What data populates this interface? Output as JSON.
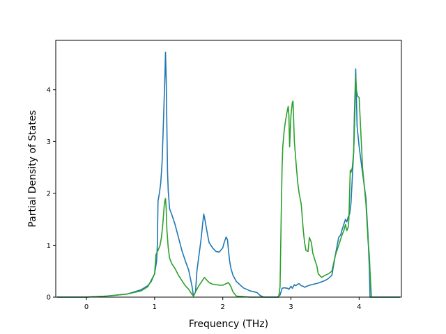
{
  "chart_data": {
    "type": "line",
    "title": "",
    "xlabel": "Frequency (THz)",
    "ylabel": "Partial Density of States",
    "xlim": [
      -0.45,
      4.62
    ],
    "ylim": [
      0,
      4.95
    ],
    "xticks": [
      0,
      1,
      2,
      3,
      4
    ],
    "yticks": [
      0,
      1,
      2,
      3,
      4
    ],
    "grid": false,
    "legend": "none",
    "series": [
      {
        "color": "#1f77b4",
        "x": [
          -0.43,
          0.0,
          0.3,
          0.6,
          0.8,
          0.9,
          0.95,
          1.0,
          1.03,
          1.04,
          1.05,
          1.07,
          1.09,
          1.11,
          1.13,
          1.15,
          1.16,
          1.17,
          1.18,
          1.19,
          1.2,
          1.22,
          1.25,
          1.3,
          1.35,
          1.4,
          1.45,
          1.5,
          1.55,
          1.57,
          1.6,
          1.62,
          1.65,
          1.68,
          1.7,
          1.72,
          1.73,
          1.75,
          1.78,
          1.8,
          1.85,
          1.9,
          1.95,
          2.0,
          2.02,
          2.05,
          2.07,
          2.08,
          2.1,
          2.12,
          2.15,
          2.2,
          2.3,
          2.4,
          2.5,
          2.55,
          2.6,
          2.62,
          2.8,
          2.84,
          2.87,
          2.9,
          2.95,
          2.97,
          3.0,
          3.02,
          3.05,
          3.07,
          3.1,
          3.12,
          3.15,
          3.18,
          3.2,
          3.25,
          3.3,
          3.4,
          3.5,
          3.55,
          3.6,
          3.65,
          3.7,
          3.73,
          3.75,
          3.78,
          3.8,
          3.82,
          3.84,
          3.86,
          3.88,
          3.9,
          3.92,
          3.93,
          3.95,
          3.97,
          4.0,
          4.05,
          4.1,
          4.13,
          4.15,
          4.16,
          4.18,
          4.2,
          4.4,
          4.6
        ],
        "y": [
          0.0,
          0.0,
          0.02,
          0.06,
          0.14,
          0.22,
          0.3,
          0.45,
          0.7,
          1.0,
          1.85,
          2.0,
          2.2,
          2.6,
          3.4,
          4.2,
          4.72,
          4.2,
          3.3,
          2.4,
          2.05,
          1.7,
          1.6,
          1.4,
          1.15,
          0.9,
          0.7,
          0.52,
          0.2,
          0.02,
          0.1,
          0.5,
          0.8,
          1.1,
          1.35,
          1.6,
          1.55,
          1.4,
          1.18,
          1.05,
          0.95,
          0.88,
          0.87,
          0.95,
          1.05,
          1.16,
          1.1,
          0.95,
          0.7,
          0.55,
          0.42,
          0.3,
          0.18,
          0.12,
          0.09,
          0.03,
          0.0,
          0.0,
          0.0,
          0.04,
          0.17,
          0.18,
          0.17,
          0.15,
          0.21,
          0.17,
          0.24,
          0.22,
          0.25,
          0.26,
          0.22,
          0.21,
          0.19,
          0.22,
          0.24,
          0.27,
          0.32,
          0.36,
          0.42,
          0.8,
          1.15,
          1.2,
          1.3,
          1.42,
          1.5,
          1.45,
          1.55,
          1.6,
          1.8,
          2.3,
          2.8,
          3.5,
          4.4,
          3.3,
          2.9,
          2.4,
          1.9,
          1.2,
          0.55,
          0.0,
          0.0,
          0.0,
          0.0,
          0.0
        ]
      },
      {
        "color": "#2ca02c",
        "x": [
          -0.43,
          0.0,
          0.3,
          0.6,
          0.8,
          0.9,
          1.0,
          1.02,
          1.05,
          1.08,
          1.1,
          1.12,
          1.14,
          1.15,
          1.16,
          1.17,
          1.18,
          1.2,
          1.22,
          1.25,
          1.3,
          1.35,
          1.4,
          1.45,
          1.5,
          1.55,
          1.57,
          1.6,
          1.65,
          1.7,
          1.73,
          1.75,
          1.8,
          1.85,
          1.9,
          1.95,
          2.0,
          2.05,
          2.08,
          2.1,
          2.12,
          2.15,
          2.2,
          2.4,
          2.6,
          2.8,
          2.82,
          2.84,
          2.85,
          2.86,
          2.87,
          2.88,
          2.9,
          2.92,
          2.94,
          2.96,
          2.97,
          2.98,
          3.0,
          3.02,
          3.03,
          3.05,
          3.08,
          3.1,
          3.12,
          3.15,
          3.18,
          3.2,
          3.22,
          3.25,
          3.27,
          3.3,
          3.32,
          3.35,
          3.38,
          3.4,
          3.45,
          3.5,
          3.55,
          3.6,
          3.65,
          3.7,
          3.75,
          3.78,
          3.8,
          3.82,
          3.84,
          3.85,
          3.86,
          3.87,
          3.88,
          3.9,
          3.92,
          3.93,
          3.94,
          3.95,
          3.96,
          3.97,
          3.98,
          4.0,
          4.05,
          4.1,
          4.13,
          4.15,
          4.16,
          4.18,
          4.2,
          4.4,
          4.6
        ],
        "y": [
          0.0,
          0.0,
          0.02,
          0.06,
          0.12,
          0.2,
          0.45,
          0.82,
          0.9,
          1.0,
          1.15,
          1.4,
          1.75,
          1.85,
          1.9,
          1.7,
          1.3,
          0.95,
          0.75,
          0.65,
          0.55,
          0.42,
          0.32,
          0.22,
          0.15,
          0.05,
          0.02,
          0.1,
          0.22,
          0.32,
          0.38,
          0.35,
          0.28,
          0.25,
          0.24,
          0.23,
          0.23,
          0.26,
          0.28,
          0.25,
          0.2,
          0.1,
          0.02,
          0.0,
          0.0,
          0.0,
          0.0,
          0.2,
          1.0,
          1.8,
          2.5,
          2.9,
          3.2,
          3.4,
          3.55,
          3.68,
          3.5,
          2.9,
          3.5,
          3.75,
          3.78,
          3.0,
          2.5,
          2.2,
          2.0,
          1.8,
          1.3,
          1.05,
          0.9,
          0.88,
          1.15,
          1.05,
          0.85,
          0.72,
          0.6,
          0.45,
          0.38,
          0.42,
          0.45,
          0.5,
          0.8,
          1.0,
          1.2,
          1.3,
          1.4,
          1.28,
          1.35,
          1.5,
          2.0,
          2.45,
          2.4,
          2.5,
          2.8,
          3.2,
          3.7,
          4.25,
          4.0,
          3.92,
          3.87,
          3.85,
          2.5,
          1.8,
          1.1,
          0.8,
          0.5,
          0.0,
          0.0,
          0.0,
          0.0
        ]
      }
    ]
  }
}
